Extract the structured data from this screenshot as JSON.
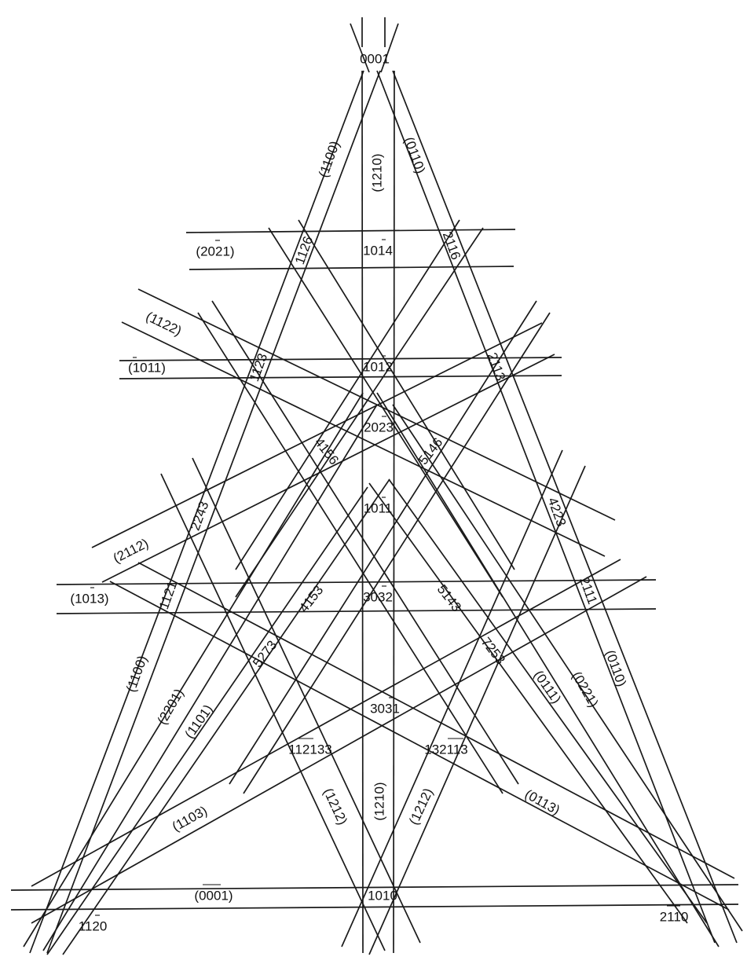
{
  "diagram": {
    "line_color": "#1a1a1a",
    "background": "#ffffff",
    "pole_labels": {
      "p0001": "0001",
      "p10m14": "1014",
      "p10m12": "1012",
      "p20m23": "2023",
      "p10m11": "1011",
      "p30m32": "3032",
      "p30m31": "3031",
      "p1010": "1010",
      "p11m20": "1120",
      "p2m1m10": "2110",
      "p11m26": "1126",
      "p2m1m16": "2116",
      "p11m23": "1123",
      "p2m1m13": "2113",
      "p41m56": "4156",
      "p5m146": "5146",
      "p22m43": "2243",
      "p42m23": "4223",
      "p11m21": "1121",
      "p2m1m11": "2111",
      "p41m53": "4153",
      "p5m143": "5143",
      "p52m73": "5273",
      "p72m53": "7253",
      "p112m1m33": "112133",
      "p13m2m113": "132113"
    },
    "trace_labels": {
      "t1m100_top": "(1100)",
      "t12m10_top": "(1210)",
      "t01m10_top": "(0110)",
      "t20m21": "(2021)",
      "t11m22": "(1122)",
      "t10m11": "(1011)",
      "t2m1m12": "(2112)",
      "t10m13": "(1013)",
      "t1m100_bot": "(1100)",
      "t2m201": "(2201)",
      "t1m101": "(1101)",
      "t1m103": "(1103)",
      "t0001": "(0001)",
      "tm1m212": "(1212)",
      "tm12m10": "(1210)",
      "tm1212": "(1212)",
      "t01m11": "(0111)",
      "t01m13": "(0113)",
      "t02m21": "(0221)",
      "t01m10_bot": "(0110)"
    }
  }
}
